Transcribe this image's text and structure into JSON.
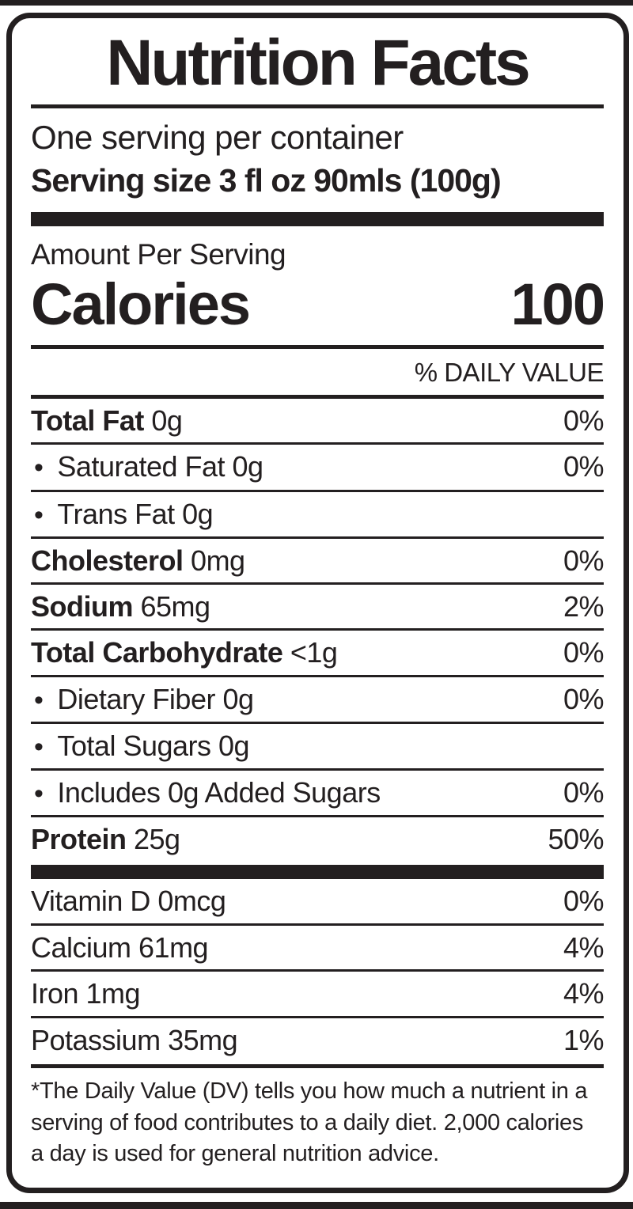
{
  "label": {
    "title": "Nutrition Facts",
    "servings_per_container": "One serving per container",
    "serving_size": "Serving size 3 fl oz 90mls (100g)",
    "amount_per_serving": "Amount Per Serving",
    "calories_label": "Calories",
    "calories_value": "100",
    "daily_value_header": "% DAILY VALUE",
    "bullet": "•",
    "ink_color": "#231f20",
    "nutrients": [
      {
        "bold": "Total Fat",
        "rest": " 0g",
        "dv": "0%",
        "indent": false
      },
      {
        "bold": "",
        "rest": "Saturated Fat 0g",
        "dv": "0%",
        "indent": true
      },
      {
        "bold": "",
        "rest": "Trans Fat 0g",
        "dv": "",
        "indent": true
      },
      {
        "bold": "Cholesterol",
        "rest": " 0mg",
        "dv": "0%",
        "indent": false
      },
      {
        "bold": "Sodium",
        "rest": " 65mg",
        "dv": "2%",
        "indent": false
      },
      {
        "bold": "Total Carbohydrate",
        "rest": " <1g",
        "dv": "0%",
        "indent": false
      },
      {
        "bold": "",
        "rest": "Dietary Fiber 0g",
        "dv": "0%",
        "indent": true
      },
      {
        "bold": "",
        "rest": "Total Sugars 0g",
        "dv": "",
        "indent": true
      },
      {
        "bold": "",
        "rest": "Includes 0g Added Sugars",
        "dv": "0%",
        "indent": true
      },
      {
        "bold": "Protein",
        "rest": " 25g",
        "dv": "50%",
        "indent": false
      }
    ],
    "vitamins": [
      {
        "text": "Vitamin D 0mcg",
        "dv": "0%"
      },
      {
        "text": "Calcium 61mg",
        "dv": "4%"
      },
      {
        "text": "Iron 1mg",
        "dv": "4%"
      },
      {
        "text": "Potassium 35mg",
        "dv": "1%"
      }
    ],
    "footnote": "*The Daily Value (DV) tells you how much a nutrient in a serving of food contributes to a daily diet. 2,000 calories a day is used for general nutrition advice."
  }
}
